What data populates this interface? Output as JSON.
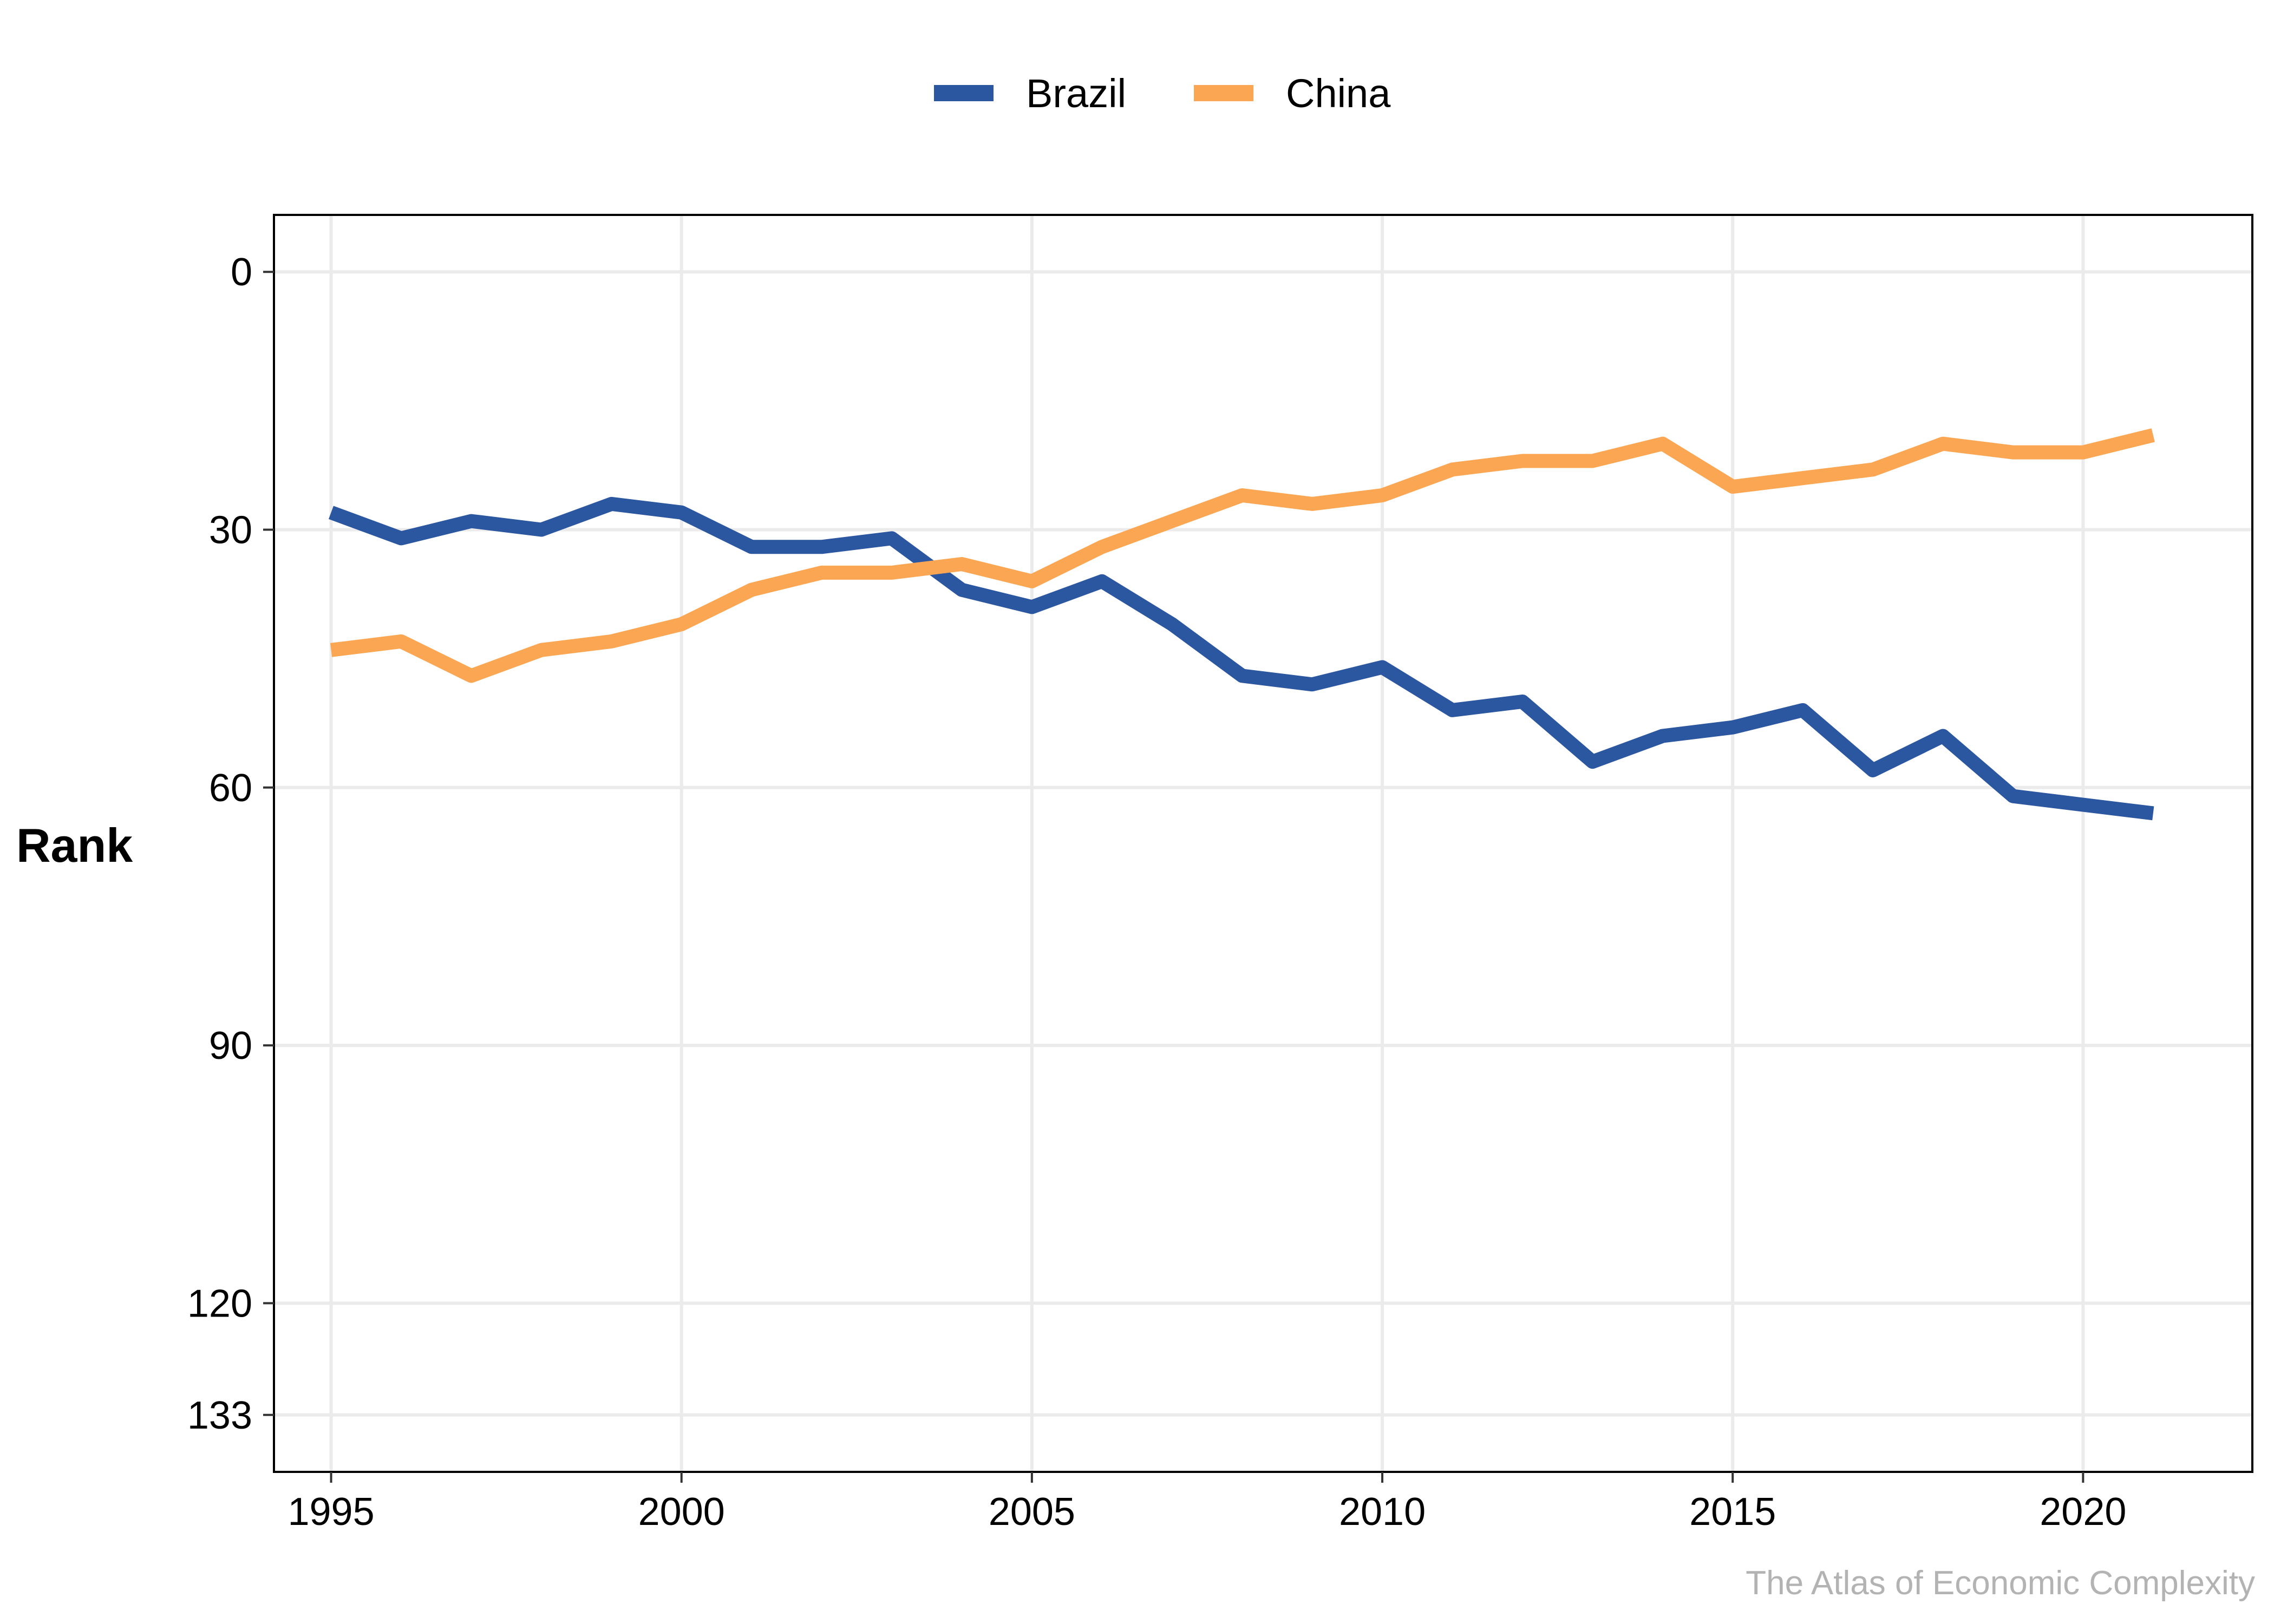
{
  "chart_data": {
    "type": "line",
    "ylabel": "Rank",
    "xlabel": "",
    "y_reversed": true,
    "xlim": [
      1994.2,
      2022.4
    ],
    "ylim": [
      -6.5,
      139.5
    ],
    "x_ticks": [
      1995,
      2000,
      2005,
      2010,
      2015,
      2020
    ],
    "y_ticks": [
      0,
      30,
      60,
      90,
      120,
      133
    ],
    "grid": true,
    "legend_position": "top",
    "x": [
      1995,
      1996,
      1997,
      1998,
      1999,
      2000,
      2001,
      2002,
      2003,
      2004,
      2005,
      2006,
      2007,
      2008,
      2009,
      2010,
      2011,
      2012,
      2013,
      2014,
      2015,
      2016,
      2017,
      2018,
      2019,
      2020,
      2021
    ],
    "series": [
      {
        "name": "Brazil",
        "color": "#2b56a0",
        "values": [
          28,
          31,
          29,
          30,
          27,
          28,
          32,
          32,
          31,
          37,
          39,
          36,
          41,
          47,
          48,
          46,
          51,
          50,
          57,
          54,
          53,
          51,
          58,
          54,
          61,
          62,
          63
        ]
      },
      {
        "name": "China",
        "color": "#fba652",
        "values": [
          44,
          43,
          47,
          44,
          43,
          41,
          37,
          35,
          35,
          34,
          36,
          32,
          29,
          26,
          27,
          26,
          23,
          22,
          22,
          20,
          25,
          24,
          23,
          20,
          21,
          21,
          19
        ]
      }
    ]
  },
  "caption": "The Atlas of Economic Complexity"
}
